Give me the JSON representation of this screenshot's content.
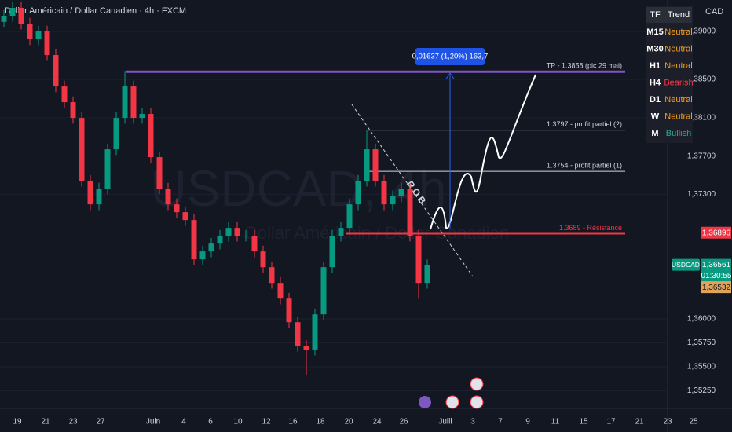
{
  "chart_data": {
    "type": "candlestick",
    "title": "Dollar Américain / Dollar Canadien · 4h · FXCM",
    "watermark": "USDCAD, 4h",
    "watermark_subtitle": "Dollar Américain / Dollar Canadien",
    "currency": "CAD",
    "ylim": [
      1.35066,
      1.39328
    ],
    "yticks": [
      {
        "value": 1.39,
        "label": "1,39000"
      },
      {
        "value": 1.385,
        "label": "1,38500"
      },
      {
        "value": 1.381,
        "label": "1,38100"
      },
      {
        "value": 1.377,
        "label": "1,37700"
      },
      {
        "value": 1.373,
        "label": "1,37300"
      },
      {
        "value": 1.36,
        "label": "1,36000"
      },
      {
        "value": 1.3575,
        "label": "1,35750"
      },
      {
        "value": 1.355,
        "label": "1,35500"
      },
      {
        "value": 1.3525,
        "label": "1,35250"
      }
    ],
    "xticks": [
      "19",
      "21",
      "23",
      "27",
      "Juin",
      "4",
      "6",
      "10",
      "12",
      "16",
      "18",
      "20",
      "24",
      "26",
      "Juill",
      "3",
      "7",
      "9",
      "11",
      "15",
      "17",
      "21",
      "23",
      "25"
    ],
    "up_color": "#089981",
    "down_color": "#f23645",
    "open": [
      1.391,
      1.39164,
      1.39246,
      1.39082,
      1.38918,
      1.39,
      1.38754,
      1.38426,
      1.38262,
      1.38098,
      1.37442,
      1.37196,
      1.3736,
      1.3777,
      1.38098,
      1.38426,
      1.38098,
      1.38139,
      1.37688,
      1.3736,
      1.37196,
      1.37114,
      1.37032,
      1.36622,
      1.36704,
      1.36786,
      1.36868,
      1.3695,
      1.36868,
      1.36868,
      1.36704,
      1.3654,
      1.36376,
      1.36212,
      1.35966,
      1.3572,
      1.35679,
      1.36048,
      1.3654,
      1.36868,
      1.3695,
      1.37196,
      1.37442,
      1.3777,
      1.37442,
      1.37196,
      1.3728,
      1.3736,
      1.36868,
      1.36376
    ],
    "high": [
      1.39224,
      1.39306,
      1.39306,
      1.39142,
      1.3906,
      1.3906,
      1.38814,
      1.38486,
      1.38322,
      1.38158,
      1.37502,
      1.3742,
      1.3783,
      1.38158,
      1.3858,
      1.38486,
      1.38199,
      1.38199,
      1.37748,
      1.3742,
      1.37256,
      1.37174,
      1.37092,
      1.36764,
      1.36846,
      1.36928,
      1.3701,
      1.3701,
      1.36928,
      1.36928,
      1.36764,
      1.366,
      1.36436,
      1.36272,
      1.36026,
      1.3578,
      1.36108,
      1.366,
      1.36928,
      1.3701,
      1.37256,
      1.37502,
      1.3797,
      1.3783,
      1.37502,
      1.3734,
      1.3742,
      1.3742,
      1.36928,
      1.36621
    ],
    "low": [
      1.3904,
      1.39104,
      1.39022,
      1.38858,
      1.38858,
      1.38694,
      1.38366,
      1.38202,
      1.38038,
      1.37382,
      1.37136,
      1.37136,
      1.373,
      1.3771,
      1.38038,
      1.38038,
      1.38038,
      1.37628,
      1.373,
      1.37136,
      1.37054,
      1.36972,
      1.36562,
      1.36562,
      1.36644,
      1.36726,
      1.36808,
      1.36808,
      1.36808,
      1.36644,
      1.3648,
      1.36316,
      1.36152,
      1.35906,
      1.3566,
      1.3541,
      1.35619,
      1.35988,
      1.3648,
      1.36808,
      1.3689,
      1.37136,
      1.37382,
      1.37382,
      1.37136,
      1.37136,
      1.3722,
      1.36808,
      1.3621,
      1.36316
    ],
    "close": [
      1.39164,
      1.39246,
      1.39082,
      1.38918,
      1.39,
      1.38754,
      1.38426,
      1.38262,
      1.38098,
      1.37442,
      1.37196,
      1.3736,
      1.3777,
      1.38098,
      1.38426,
      1.38098,
      1.38139,
      1.37688,
      1.3736,
      1.37196,
      1.37114,
      1.37032,
      1.36622,
      1.36704,
      1.36786,
      1.36868,
      1.3695,
      1.36868,
      1.36868,
      1.36704,
      1.3654,
      1.36376,
      1.36212,
      1.35966,
      1.3572,
      1.35679,
      1.36048,
      1.3654,
      1.36868,
      1.3695,
      1.37196,
      1.37442,
      1.3777,
      1.37442,
      1.37196,
      1.3728,
      1.3736,
      1.36868,
      1.36376,
      1.36561
    ],
    "levels": [
      {
        "value": 1.3858,
        "label": "TP - 1.3858 (pic 29 mai)",
        "color": "#7e57c2"
      },
      {
        "value": 1.3797,
        "label": "1.3797 - profit partiel (2)",
        "color": "#d1d4dc"
      },
      {
        "value": 1.3754,
        "label": "1.3754 - profit partiel (1)",
        "color": "#d1d4dc"
      },
      {
        "value": 1.3689,
        "label": "1.3689 - Résistance",
        "color": "#f23645"
      }
    ],
    "measure": {
      "from": 1.36943,
      "to": 1.3858,
      "label": "0,01637 (1,20%) 163,7"
    },
    "trendline_label": "ROB",
    "price_tags": [
      {
        "value": 1.36896,
        "label": "1,36896",
        "color": "#f23645"
      },
      {
        "value": 1.36561,
        "label": "1,36561",
        "color": "#089981",
        "name": "USDCAD",
        "timer": "01:30:55"
      },
      {
        "value": 1.36532,
        "label": "1,36532",
        "color": "#e0a458"
      }
    ],
    "trend_table": {
      "header": [
        "TF",
        "Trend"
      ],
      "rows": [
        [
          "M15",
          "Neutral"
        ],
        [
          "M30",
          "Neutral"
        ],
        [
          "H1",
          "Neutral"
        ],
        [
          "H4",
          "Bearish"
        ],
        [
          "D1",
          "Neutral"
        ],
        [
          "W",
          "Neutral"
        ],
        [
          "M",
          "Bullish"
        ]
      ]
    }
  }
}
